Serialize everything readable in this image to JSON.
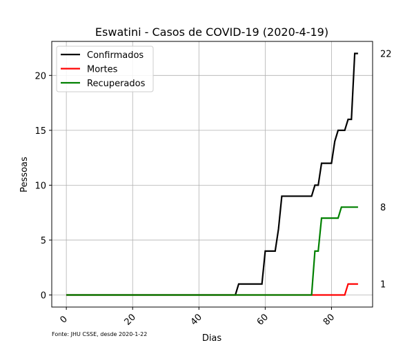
{
  "chart_data": {
    "type": "line",
    "title": "Eswatini - Casos de COVID-19 (2020-4-19)",
    "xlabel": "Dias",
    "ylabel": "Pessoas",
    "xlim": [
      -4.4,
      92.4
    ],
    "ylim": [
      -1.1,
      23.1
    ],
    "xticks": [
      0,
      20,
      40,
      60,
      80
    ],
    "yticks": [
      0,
      5,
      10,
      15,
      20
    ],
    "grid": true,
    "legend_position": "top-left",
    "source_note": "Fonte: JHU CSSE, desde 2020-1-22",
    "series": [
      {
        "name": "Confirmados",
        "color": "#000000",
        "points": [
          [
            0,
            0
          ],
          [
            51,
            0
          ],
          [
            52,
            1
          ],
          [
            59,
            1
          ],
          [
            60,
            4
          ],
          [
            63,
            4
          ],
          [
            64,
            6
          ],
          [
            65,
            9
          ],
          [
            74,
            9
          ],
          [
            75,
            10
          ],
          [
            76,
            10
          ],
          [
            77,
            12
          ],
          [
            80,
            12
          ],
          [
            81,
            14
          ],
          [
            82,
            15
          ],
          [
            84,
            15
          ],
          [
            85,
            16
          ],
          [
            86,
            16
          ],
          [
            87,
            22
          ],
          [
            88,
            22
          ]
        ]
      },
      {
        "name": "Mortes",
        "color": "#ff0000",
        "points": [
          [
            0,
            0
          ],
          [
            84,
            0
          ],
          [
            85,
            1
          ],
          [
            88,
            1
          ]
        ]
      },
      {
        "name": "Recuperados",
        "color": "#008000",
        "points": [
          [
            0,
            0
          ],
          [
            74,
            0
          ],
          [
            75,
            4
          ],
          [
            76,
            4
          ],
          [
            77,
            7
          ],
          [
            82,
            7
          ],
          [
            83,
            8
          ],
          [
            88,
            8
          ]
        ]
      }
    ],
    "end_labels": [
      {
        "text": "22",
        "value": 22
      },
      {
        "text": "8",
        "value": 8
      },
      {
        "text": "1",
        "value": 1
      }
    ]
  }
}
